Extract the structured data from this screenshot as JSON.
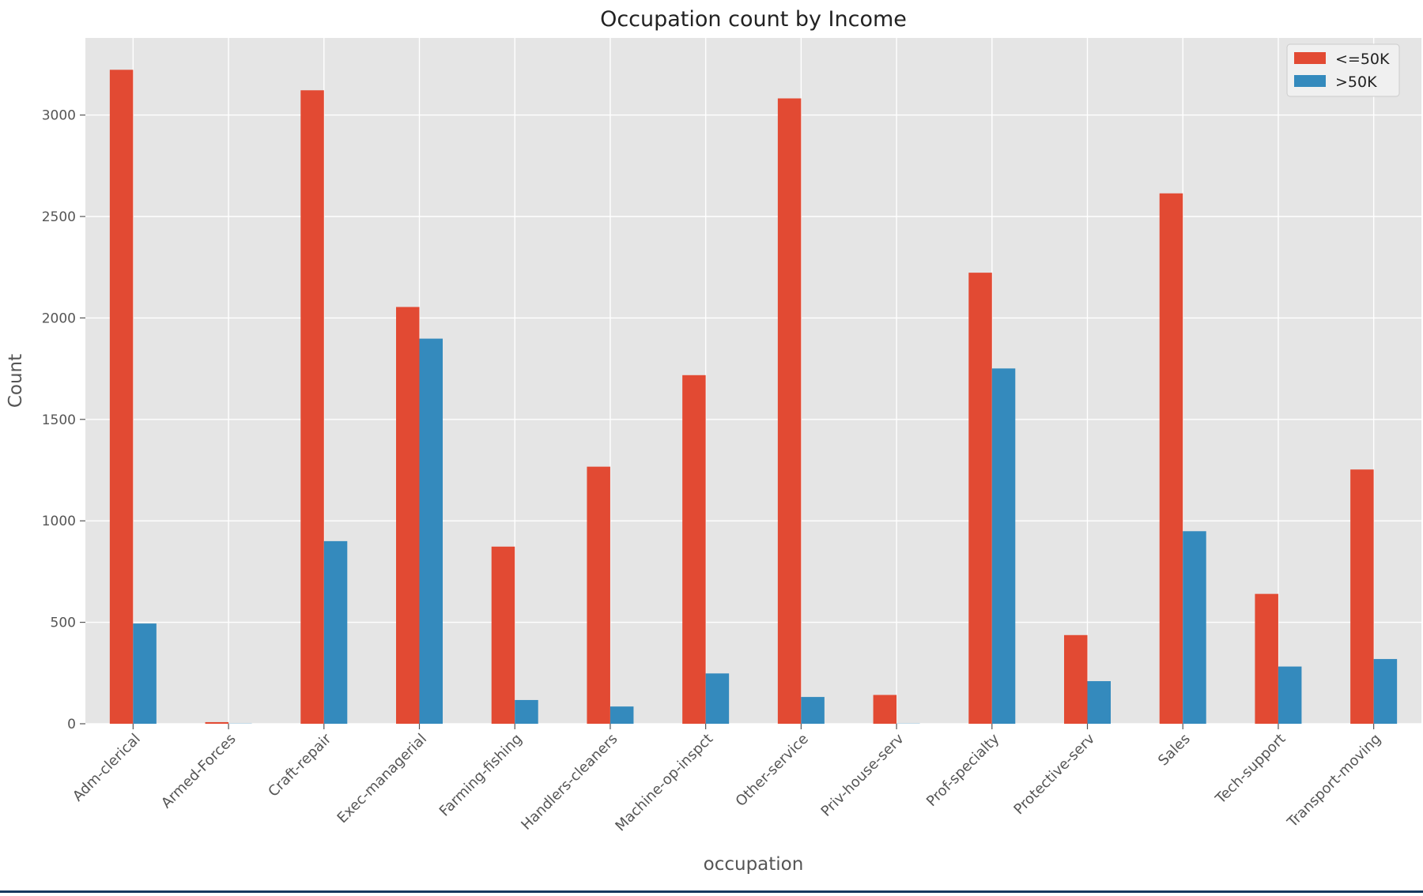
{
  "chart_data": {
    "type": "bar",
    "title": "Occupation count by Income",
    "xlabel": "occupation",
    "ylabel": "Count",
    "categories": [
      "Adm-clerical",
      "Armed-Forces",
      "Craft-repair",
      "Exec-managerial",
      "Farming-fishing",
      "Handlers-cleaners",
      "Machine-op-inspct",
      "Other-service",
      "Priv-house-serv",
      "Prof-specialty",
      "Protective-serv",
      "Sales",
      "Tech-support",
      "Transport-moving"
    ],
    "series": [
      {
        "name": "<=50K",
        "color": "#e24a33",
        "values": [
          3223,
          8,
          3122,
          2054,
          873,
          1267,
          1718,
          3082,
          142,
          2223,
          437,
          2614,
          640,
          1253
        ]
      },
      {
        "name": ">50K",
        "color": "#348abd",
        "values": [
          494,
          1,
          900,
          1898,
          117,
          85,
          248,
          132,
          1,
          1751,
          210,
          949,
          282,
          319
        ]
      }
    ],
    "ylim": [
      0,
      3380
    ],
    "yticks": [
      0,
      500,
      1000,
      1500,
      2000,
      2500,
      3000
    ],
    "grid": true,
    "legend_position": "top-right",
    "style": {
      "plot_background": "#e5e5e5",
      "grid_color": "#ffffff",
      "text_color": "#555555"
    }
  }
}
